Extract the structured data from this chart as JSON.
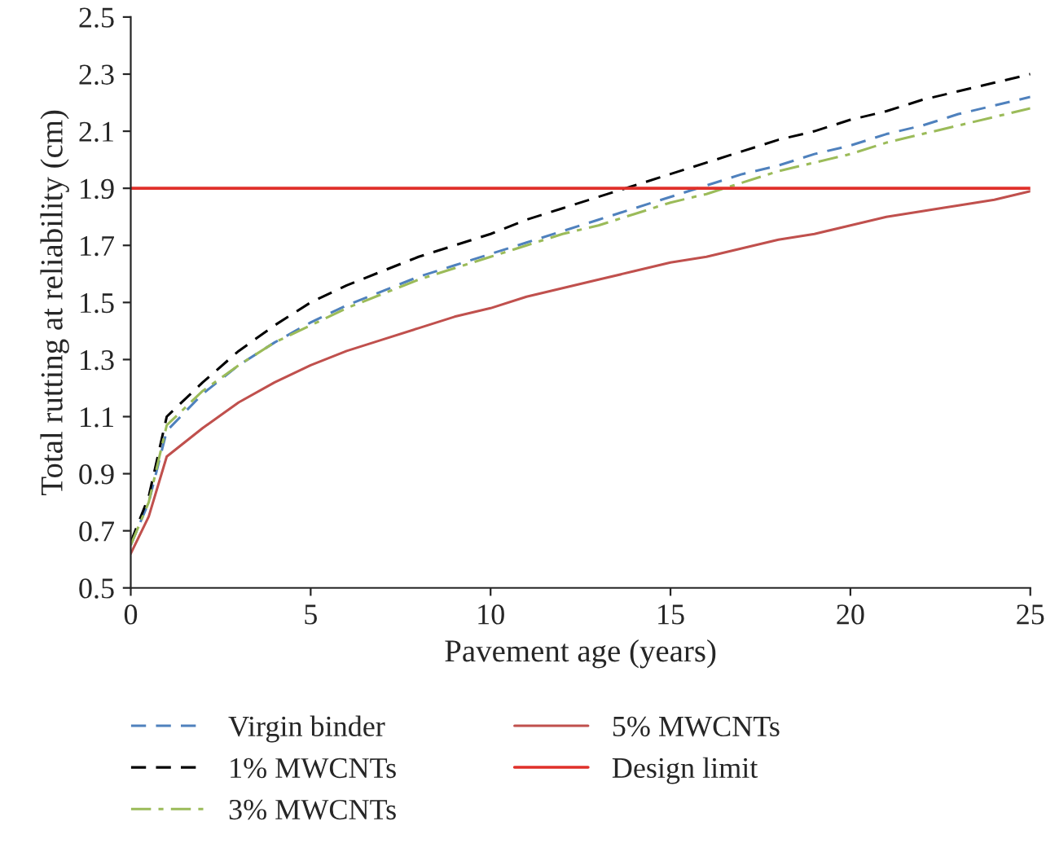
{
  "chart_data": {
    "type": "line",
    "xlabel": "Pavement age (years)",
    "ylabel": "Total rutting at reliability (cm)",
    "x": [
      0,
      0.5,
      1,
      2,
      3,
      4,
      5,
      6,
      7,
      8,
      9,
      10,
      11,
      12,
      13,
      14,
      15,
      16,
      17,
      18,
      19,
      20,
      21,
      22,
      23,
      24,
      25
    ],
    "series": [
      {
        "name": "Virgin binder",
        "color": "#4f81bd",
        "line_style": "dashed",
        "values": [
          0.65,
          0.8,
          1.05,
          1.18,
          1.28,
          1.36,
          1.43,
          1.49,
          1.54,
          1.59,
          1.63,
          1.67,
          1.71,
          1.75,
          1.79,
          1.83,
          1.87,
          1.91,
          1.95,
          1.98,
          2.02,
          2.05,
          2.09,
          2.12,
          2.16,
          2.19,
          2.22
        ]
      },
      {
        "name": "1% MWCNTs",
        "color": "#000000",
        "line_style": "dashed",
        "values": [
          0.66,
          0.82,
          1.1,
          1.22,
          1.33,
          1.42,
          1.5,
          1.56,
          1.61,
          1.66,
          1.7,
          1.74,
          1.79,
          1.83,
          1.87,
          1.91,
          1.95,
          1.99,
          2.03,
          2.07,
          2.1,
          2.14,
          2.17,
          2.21,
          2.24,
          2.27,
          2.3
        ]
      },
      {
        "name": "3% MWCNTs",
        "color": "#9bbb59",
        "line_style": "dashdot",
        "values": [
          0.65,
          0.8,
          1.07,
          1.19,
          1.28,
          1.36,
          1.42,
          1.48,
          1.53,
          1.58,
          1.62,
          1.66,
          1.7,
          1.74,
          1.77,
          1.81,
          1.85,
          1.88,
          1.92,
          1.96,
          1.99,
          2.02,
          2.06,
          2.09,
          2.12,
          2.15,
          2.18
        ]
      },
      {
        "name": "5% MWCNTs",
        "color": "#c0504d",
        "line_style": "solid",
        "values": [
          0.62,
          0.75,
          0.96,
          1.06,
          1.15,
          1.22,
          1.28,
          1.33,
          1.37,
          1.41,
          1.45,
          1.48,
          1.52,
          1.55,
          1.58,
          1.61,
          1.64,
          1.66,
          1.69,
          1.72,
          1.74,
          1.77,
          1.8,
          1.82,
          1.84,
          1.86,
          1.89
        ]
      }
    ],
    "ref_lines": [
      {
        "axis": "y",
        "value": 1.9,
        "label": "Design limit",
        "color": "#e0302a",
        "line_style": "solid"
      }
    ],
    "xlim": [
      0,
      25
    ],
    "xticks": [
      0,
      5,
      10,
      15,
      20,
      25
    ],
    "ylim": [
      0.5,
      2.5
    ],
    "yticks": [
      0.5,
      0.7,
      0.9,
      1.1,
      1.3,
      1.5,
      1.7,
      1.9,
      2.1,
      2.3,
      2.5
    ],
    "grid": false,
    "legend": "bottom"
  }
}
